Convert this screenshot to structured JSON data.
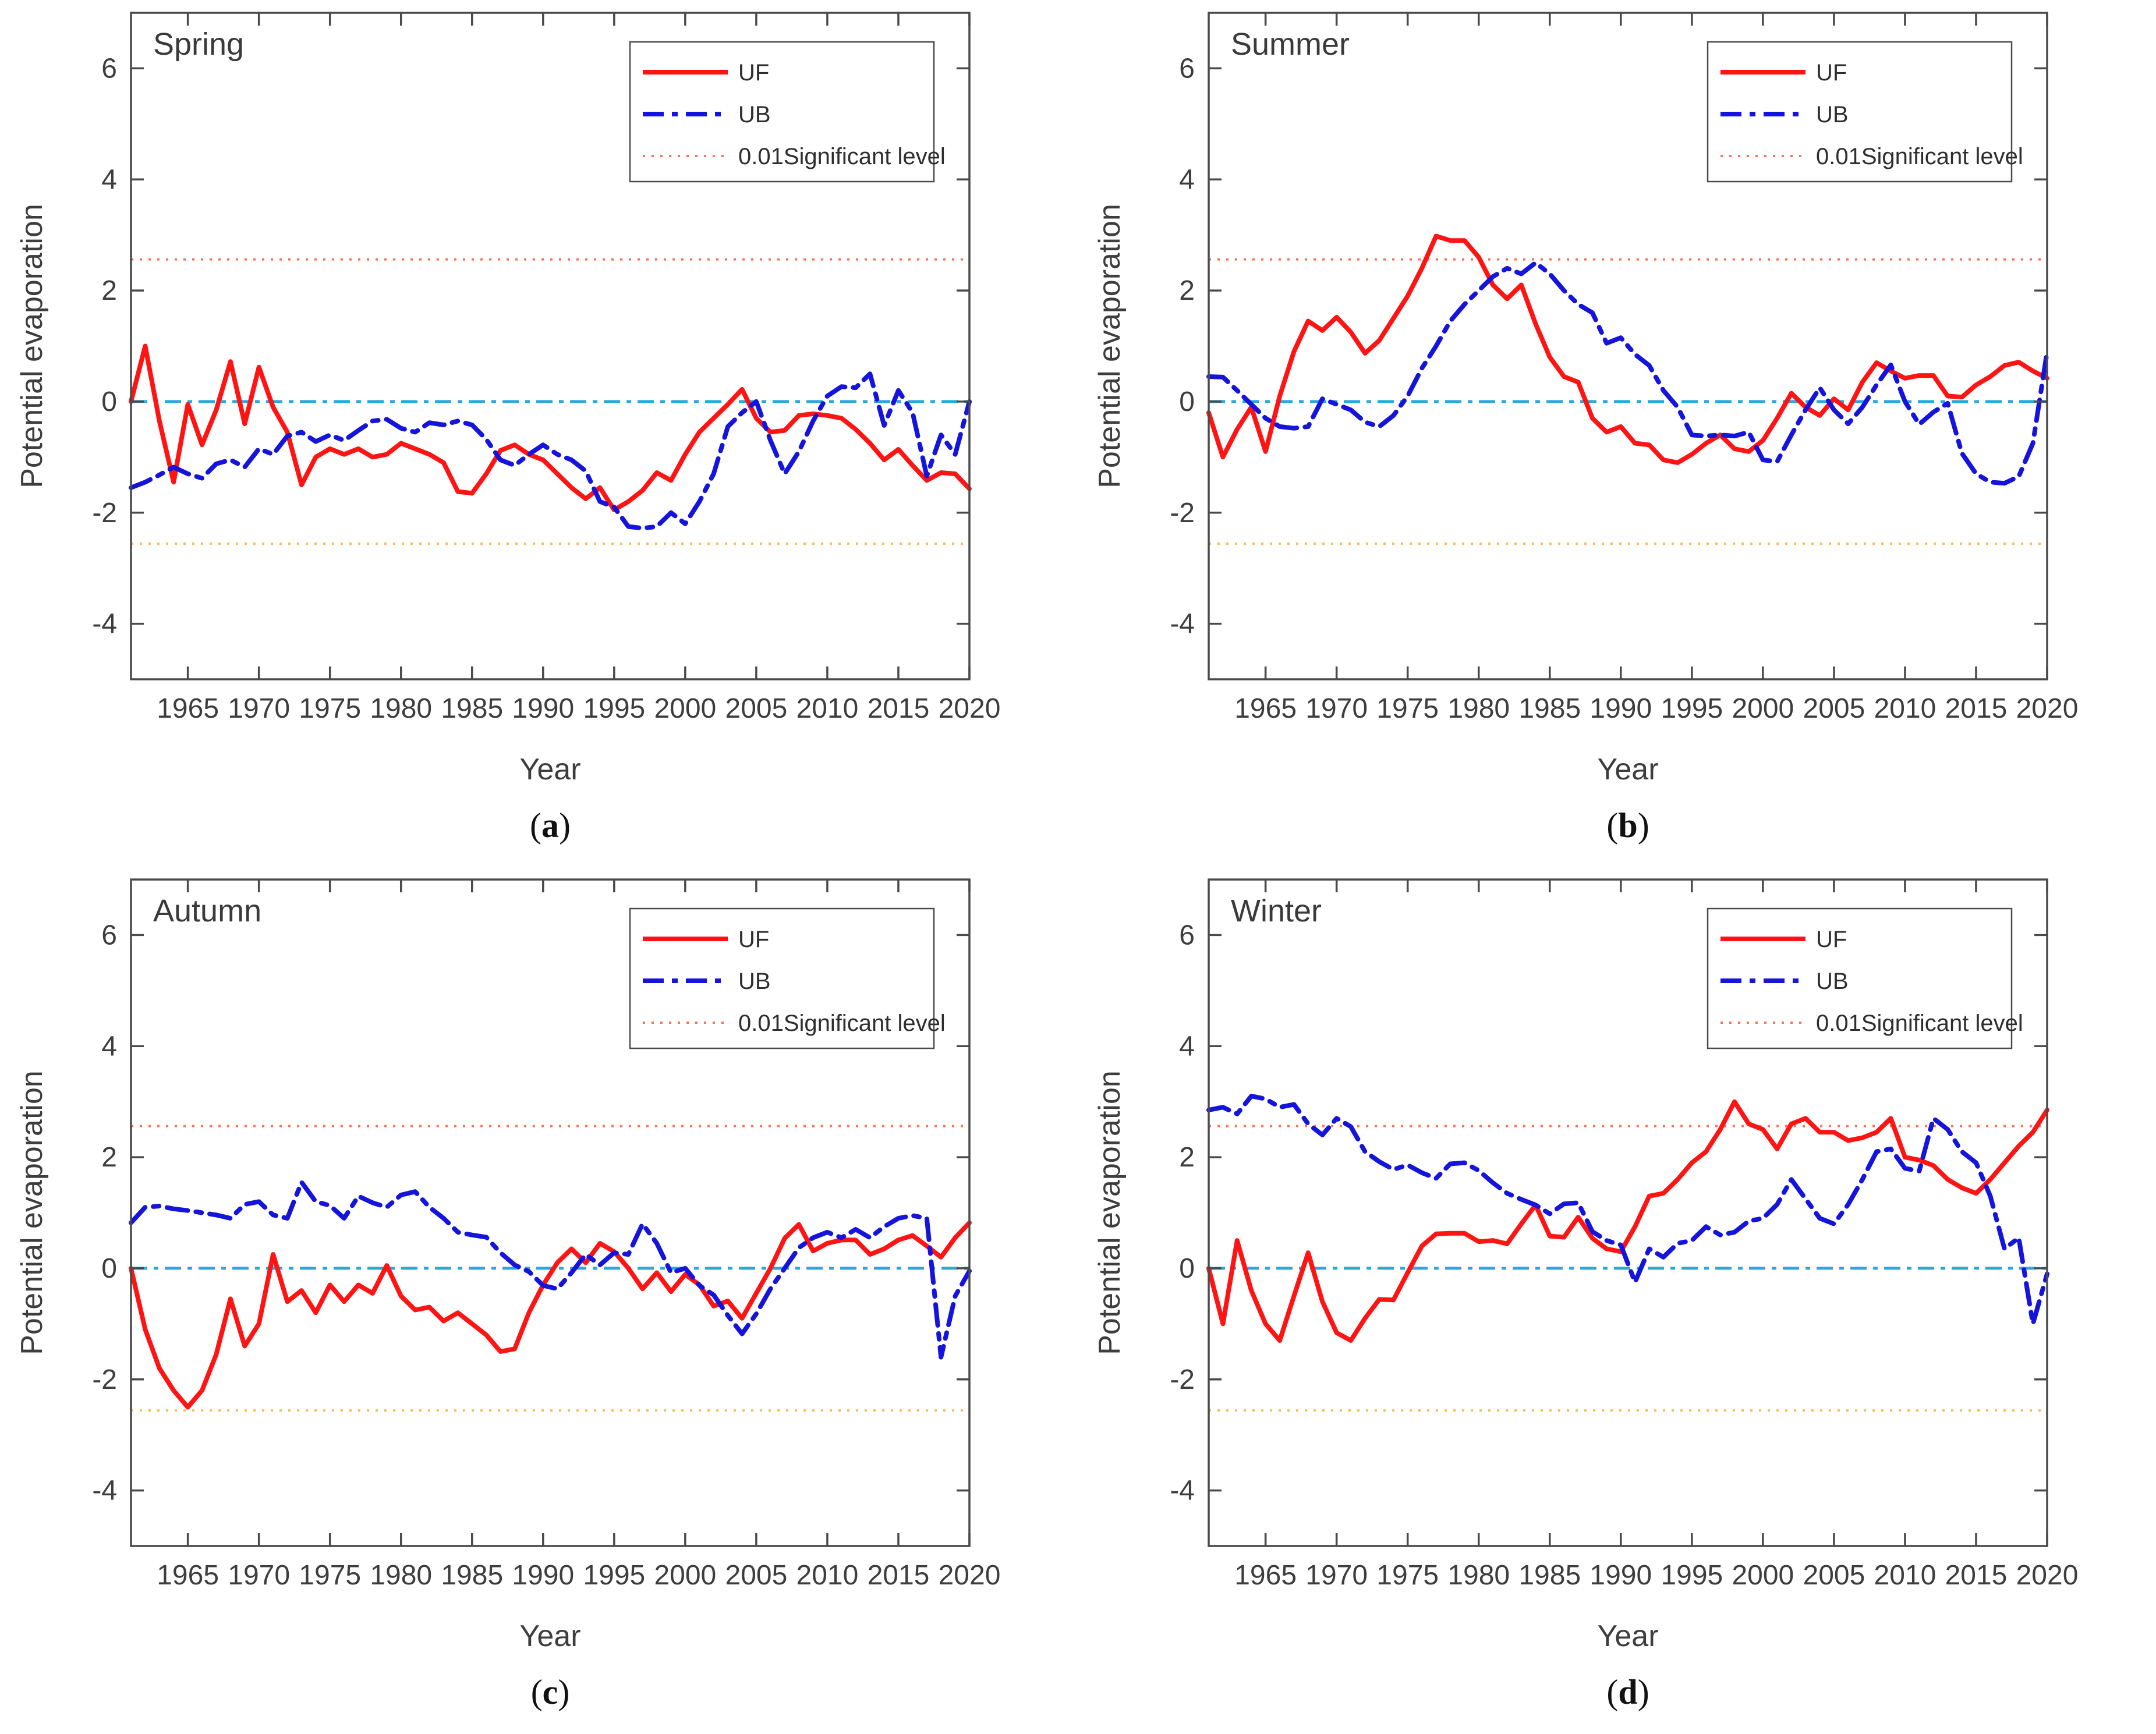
{
  "figure": {
    "background": "#ffffff",
    "colors": {
      "uf": "#ff1414",
      "ub": "#1414dc",
      "zero_line": "#2aa9df",
      "sig_upper": "#ff7257",
      "sig_lower": "#ffbb55",
      "axis": "#4a4a4a",
      "text": "#3d3d3d"
    }
  },
  "chart_data": [
    {
      "type": "line",
      "panel_id": "a",
      "caption_letter": "a",
      "title": "Spring",
      "xlabel": "Year",
      "ylabel": "Potential evaporation",
      "xlim": [
        1961,
        2020
      ],
      "ylim": [
        -5,
        7
      ],
      "x_ticks": [
        1965,
        1970,
        1975,
        1980,
        1985,
        1990,
        1995,
        2000,
        2005,
        2010,
        2015,
        2020
      ],
      "y_ticks": [
        -4,
        -2,
        0,
        2,
        4,
        6
      ],
      "grid": false,
      "legend_position": "top-right",
      "legend": [
        "UF",
        "UB",
        "0.01Significant level"
      ],
      "ref_lines": [
        {
          "role": "zero",
          "value": 0
        },
        {
          "role": "sig-upper",
          "value": 2.56
        },
        {
          "role": "sig-lower",
          "value": -2.56
        }
      ],
      "years": [
        1961,
        1962,
        1963,
        1964,
        1965,
        1966,
        1967,
        1968,
        1969,
        1970,
        1971,
        1972,
        1973,
        1974,
        1975,
        1976,
        1977,
        1978,
        1979,
        1980,
        1981,
        1982,
        1983,
        1984,
        1985,
        1986,
        1987,
        1988,
        1989,
        1990,
        1991,
        1992,
        1993,
        1994,
        1995,
        1996,
        1997,
        1998,
        1999,
        2000,
        2001,
        2002,
        2003,
        2004,
        2005,
        2006,
        2007,
        2008,
        2009,
        2010,
        2011,
        2012,
        2013,
        2014,
        2015,
        2016,
        2017,
        2018,
        2019,
        2020
      ],
      "series": [
        {
          "name": "UF",
          "style": "solid",
          "values": [
            0.0,
            1.0,
            -0.35,
            -1.45,
            -0.05,
            -0.78,
            -0.15,
            0.72,
            -0.4,
            0.62,
            -0.1,
            -0.55,
            -1.5,
            -1.0,
            -0.85,
            -0.95,
            -0.85,
            -1.0,
            -0.95,
            -0.75,
            -0.85,
            -0.95,
            -1.1,
            -1.62,
            -1.65,
            -1.3,
            -0.88,
            -0.78,
            -0.95,
            -1.05,
            -1.3,
            -1.55,
            -1.75,
            -1.55,
            -1.95,
            -1.8,
            -1.6,
            -1.28,
            -1.42,
            -0.95,
            -0.55,
            -0.3,
            -0.05,
            0.22,
            -0.3,
            -0.55,
            -0.52,
            -0.25,
            -0.22,
            -0.25,
            -0.3,
            -0.5,
            -0.75,
            -1.05,
            -0.86,
            -1.15,
            -1.42,
            -1.28,
            -1.3,
            -1.57
          ]
        },
        {
          "name": "UB",
          "style": "dash-dot",
          "values": [
            -1.55,
            -1.45,
            -1.32,
            -1.18,
            -1.3,
            -1.38,
            -1.12,
            -1.05,
            -1.18,
            -0.85,
            -0.95,
            -0.62,
            -0.55,
            -0.72,
            -0.6,
            -0.7,
            -0.52,
            -0.35,
            -0.32,
            -0.48,
            -0.55,
            -0.38,
            -0.42,
            -0.35,
            -0.42,
            -0.68,
            -1.05,
            -1.15,
            -0.95,
            -0.78,
            -0.95,
            -1.05,
            -1.25,
            -1.8,
            -1.9,
            -2.25,
            -2.28,
            -2.25,
            -2.0,
            -2.2,
            -1.8,
            -1.3,
            -0.45,
            -0.2,
            0.0,
            -0.7,
            -1.3,
            -0.9,
            -0.35,
            0.1,
            0.27,
            0.25,
            0.5,
            -0.43,
            0.2,
            -0.2,
            -1.34,
            -0.6,
            -0.95,
            0.0
          ]
        }
      ]
    },
    {
      "type": "line",
      "panel_id": "b",
      "caption_letter": "b",
      "title": "Summer",
      "xlabel": "Year",
      "ylabel": "Potential evaporation",
      "xlim": [
        1961,
        2020
      ],
      "ylim": [
        -5,
        7
      ],
      "x_ticks": [
        1965,
        1970,
        1975,
        1980,
        1985,
        1990,
        1995,
        2000,
        2005,
        2010,
        2015,
        2020
      ],
      "y_ticks": [
        -4,
        -2,
        0,
        2,
        4,
        6
      ],
      "grid": false,
      "legend_position": "top-right",
      "legend": [
        "UF",
        "UB",
        "0.01Significant level"
      ],
      "ref_lines": [
        {
          "role": "zero",
          "value": 0
        },
        {
          "role": "sig-upper",
          "value": 2.56
        },
        {
          "role": "sig-lower",
          "value": -2.56
        }
      ],
      "years": [
        1961,
        1962,
        1963,
        1964,
        1965,
        1966,
        1967,
        1968,
        1969,
        1970,
        1971,
        1972,
        1973,
        1974,
        1975,
        1976,
        1977,
        1978,
        1979,
        1980,
        1981,
        1982,
        1983,
        1984,
        1985,
        1986,
        1987,
        1988,
        1989,
        1990,
        1991,
        1992,
        1993,
        1994,
        1995,
        1996,
        1997,
        1998,
        1999,
        2000,
        2001,
        2002,
        2003,
        2004,
        2005,
        2006,
        2007,
        2008,
        2009,
        2010,
        2011,
        2012,
        2013,
        2014,
        2015,
        2016,
        2017,
        2018,
        2019,
        2020
      ],
      "series": [
        {
          "name": "UF",
          "style": "solid",
          "values": [
            -0.2,
            -1.0,
            -0.5,
            -0.1,
            -0.9,
            0.1,
            0.9,
            1.45,
            1.28,
            1.52,
            1.25,
            0.87,
            1.1,
            1.5,
            1.9,
            2.4,
            2.98,
            2.9,
            2.9,
            2.6,
            2.1,
            1.85,
            2.1,
            1.4,
            0.8,
            0.45,
            0.35,
            -0.3,
            -0.55,
            -0.45,
            -0.75,
            -0.78,
            -1.05,
            -1.1,
            -0.95,
            -0.75,
            -0.6,
            -0.85,
            -0.9,
            -0.7,
            -0.3,
            0.15,
            -0.1,
            -0.25,
            0.05,
            -0.15,
            0.35,
            0.7,
            0.55,
            0.42,
            0.47,
            0.47,
            0.1,
            0.08,
            0.3,
            0.45,
            0.65,
            0.71,
            0.55,
            0.42
          ]
        },
        {
          "name": "UB",
          "style": "dash-dot",
          "values": [
            0.45,
            0.44,
            0.2,
            -0.05,
            -0.3,
            -0.45,
            -0.48,
            -0.45,
            0.05,
            -0.05,
            -0.15,
            -0.37,
            -0.45,
            -0.25,
            0.1,
            0.6,
            1.0,
            1.45,
            1.75,
            2.0,
            2.25,
            2.4,
            2.3,
            2.5,
            2.3,
            2.0,
            1.75,
            1.6,
            1.05,
            1.15,
            0.85,
            0.65,
            0.2,
            -0.1,
            -0.6,
            -0.62,
            -0.6,
            -0.62,
            -0.55,
            -1.05,
            -1.08,
            -0.6,
            -0.15,
            0.25,
            -0.15,
            -0.4,
            -0.1,
            0.3,
            0.66,
            0.0,
            -0.41,
            -0.19,
            -0.03,
            -0.93,
            -1.3,
            -1.45,
            -1.47,
            -1.35,
            -0.75,
            0.9
          ]
        }
      ]
    },
    {
      "type": "line",
      "panel_id": "c",
      "caption_letter": "c",
      "title": "Autumn",
      "xlabel": "Year",
      "ylabel": "Potential evaporation",
      "xlim": [
        1961,
        2020
      ],
      "ylim": [
        -5,
        7
      ],
      "x_ticks": [
        1965,
        1970,
        1975,
        1980,
        1985,
        1990,
        1995,
        2000,
        2005,
        2010,
        2015,
        2020
      ],
      "y_ticks": [
        -4,
        -2,
        0,
        2,
        4,
        6
      ],
      "grid": false,
      "legend_position": "top-right",
      "legend": [
        "UF",
        "UB",
        "0.01Significant level"
      ],
      "ref_lines": [
        {
          "role": "zero",
          "value": 0
        },
        {
          "role": "sig-upper",
          "value": 2.56
        },
        {
          "role": "sig-lower",
          "value": -2.56
        }
      ],
      "years": [
        1961,
        1962,
        1963,
        1964,
        1965,
        1966,
        1967,
        1968,
        1969,
        1970,
        1971,
        1972,
        1973,
        1974,
        1975,
        1976,
        1977,
        1978,
        1979,
        1980,
        1981,
        1982,
        1983,
        1984,
        1985,
        1986,
        1987,
        1988,
        1989,
        1990,
        1991,
        1992,
        1993,
        1994,
        1995,
        1996,
        1997,
        1998,
        1999,
        2000,
        2001,
        2002,
        2003,
        2004,
        2005,
        2006,
        2007,
        2008,
        2009,
        2010,
        2011,
        2012,
        2013,
        2014,
        2015,
        2016,
        2017,
        2018,
        2019,
        2020
      ],
      "series": [
        {
          "name": "UF",
          "style": "solid",
          "values": [
            0.0,
            -1.1,
            -1.8,
            -2.2,
            -2.5,
            -2.2,
            -1.55,
            -0.55,
            -1.4,
            -1.0,
            0.25,
            -0.6,
            -0.4,
            -0.8,
            -0.3,
            -0.6,
            -0.3,
            -0.45,
            0.05,
            -0.5,
            -0.75,
            -0.7,
            -0.95,
            -0.8,
            -1.0,
            -1.2,
            -1.5,
            -1.45,
            -0.8,
            -0.3,
            0.1,
            0.35,
            0.1,
            0.45,
            0.3,
            0.0,
            -0.37,
            -0.08,
            -0.42,
            -0.11,
            -0.3,
            -0.68,
            -0.59,
            -0.9,
            -0.45,
            0.0,
            0.54,
            0.79,
            0.31,
            0.45,
            0.51,
            0.51,
            0.25,
            0.35,
            0.51,
            0.59,
            0.4,
            0.2,
            0.55,
            0.82
          ]
        },
        {
          "name": "UB",
          "style": "dash-dot",
          "values": [
            0.82,
            1.1,
            1.12,
            1.07,
            1.04,
            1.0,
            0.96,
            0.9,
            1.15,
            1.2,
            0.96,
            0.9,
            1.55,
            1.2,
            1.13,
            0.9,
            1.3,
            1.18,
            1.1,
            1.32,
            1.38,
            1.1,
            0.9,
            0.65,
            0.6,
            0.56,
            0.28,
            0.06,
            -0.06,
            -0.31,
            -0.37,
            -0.08,
            0.25,
            0.06,
            0.28,
            0.25,
            0.8,
            0.45,
            -0.08,
            0.0,
            -0.31,
            -0.48,
            -0.85,
            -1.18,
            -0.82,
            -0.37,
            0.0,
            0.37,
            0.55,
            0.65,
            0.55,
            0.7,
            0.55,
            0.75,
            0.9,
            0.95,
            0.9,
            -1.6,
            -0.5,
            -0.05
          ]
        }
      ]
    },
    {
      "type": "line",
      "panel_id": "d",
      "caption_letter": "d",
      "title": "Winter",
      "xlabel": "Year",
      "ylabel": "Potential evaporation",
      "xlim": [
        1961,
        2020
      ],
      "ylim": [
        -5,
        7
      ],
      "x_ticks": [
        1965,
        1970,
        1975,
        1980,
        1985,
        1990,
        1995,
        2000,
        2005,
        2010,
        2015,
        2020
      ],
      "y_ticks": [
        -4,
        -2,
        0,
        2,
        4,
        6
      ],
      "grid": false,
      "legend_position": "top-right",
      "legend": [
        "UF",
        "UB",
        "0.01Significant level"
      ],
      "ref_lines": [
        {
          "role": "zero",
          "value": 0
        },
        {
          "role": "sig-upper",
          "value": 2.56
        },
        {
          "role": "sig-lower",
          "value": -2.56
        }
      ],
      "years": [
        1961,
        1962,
        1963,
        1964,
        1965,
        1966,
        1967,
        1968,
        1969,
        1970,
        1971,
        1972,
        1973,
        1974,
        1975,
        1976,
        1977,
        1978,
        1979,
        1980,
        1981,
        1982,
        1983,
        1984,
        1985,
        1986,
        1987,
        1988,
        1989,
        1990,
        1991,
        1992,
        1993,
        1994,
        1995,
        1996,
        1997,
        1998,
        1999,
        2000,
        2001,
        2002,
        2003,
        2004,
        2005,
        2006,
        2007,
        2008,
        2009,
        2010,
        2011,
        2012,
        2013,
        2014,
        2015,
        2016,
        2017,
        2018,
        2019,
        2020
      ],
      "series": [
        {
          "name": "UF",
          "style": "solid",
          "values": [
            0.0,
            -1.0,
            0.5,
            -0.4,
            -1.0,
            -1.3,
            -0.5,
            0.28,
            -0.6,
            -1.16,
            -1.3,
            -0.9,
            -0.56,
            -0.57,
            -0.08,
            0.4,
            0.62,
            0.63,
            0.63,
            0.48,
            0.5,
            0.44,
            0.8,
            1.14,
            0.58,
            0.56,
            0.92,
            0.54,
            0.35,
            0.3,
            0.75,
            1.3,
            1.35,
            1.6,
            1.9,
            2.1,
            2.5,
            3.0,
            2.6,
            2.5,
            2.15,
            2.6,
            2.7,
            2.45,
            2.45,
            2.3,
            2.35,
            2.45,
            2.7,
            2.0,
            1.95,
            1.85,
            1.6,
            1.45,
            1.35,
            1.6,
            1.9,
            2.2,
            2.45,
            2.85
          ]
        },
        {
          "name": "UB",
          "style": "dash-dot",
          "values": [
            2.85,
            2.9,
            2.78,
            3.1,
            3.05,
            2.9,
            2.95,
            2.6,
            2.4,
            2.7,
            2.55,
            2.1,
            1.92,
            1.78,
            1.86,
            1.72,
            1.62,
            1.88,
            1.9,
            1.76,
            1.54,
            1.35,
            1.24,
            1.14,
            0.98,
            1.16,
            1.18,
            0.66,
            0.5,
            0.42,
            -0.25,
            0.35,
            0.2,
            0.45,
            0.5,
            0.75,
            0.6,
            0.65,
            0.85,
            0.9,
            1.15,
            1.6,
            1.25,
            0.9,
            0.8,
            1.15,
            1.6,
            2.1,
            2.15,
            1.8,
            1.75,
            2.7,
            2.5,
            2.1,
            1.9,
            1.3,
            0.35,
            0.55,
            -1.0,
            -0.1
          ]
        }
      ]
    }
  ]
}
